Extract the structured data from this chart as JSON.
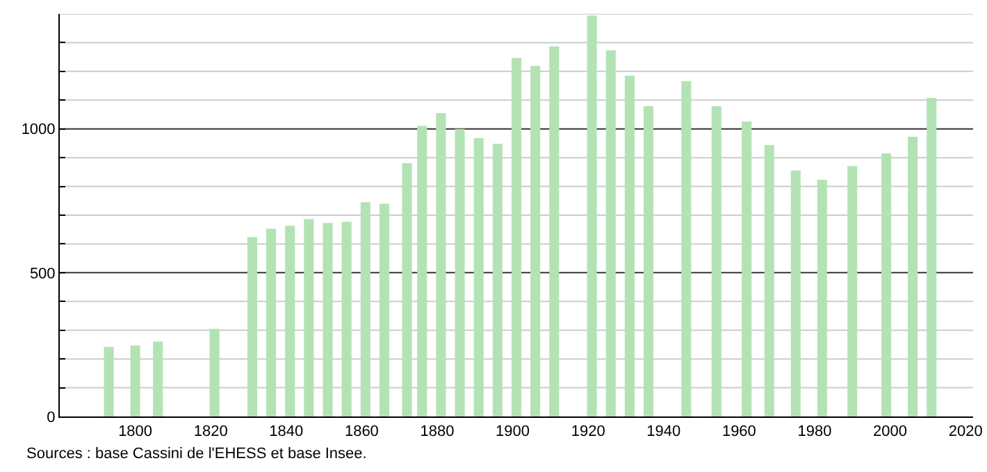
{
  "chart_data": {
    "type": "bar",
    "x": [
      1793,
      1800,
      1806,
      1821,
      1831,
      1836,
      1841,
      1846,
      1851,
      1856,
      1861,
      1866,
      1872,
      1876,
      1881,
      1886,
      1891,
      1896,
      1901,
      1906,
      1911,
      1921,
      1926,
      1931,
      1936,
      1946,
      1954,
      1962,
      1968,
      1975,
      1982,
      1990,
      1999,
      2006,
      2011
    ],
    "values": [
      242,
      247,
      261,
      305,
      624,
      653,
      663,
      687,
      673,
      677,
      745,
      740,
      881,
      1011,
      1055,
      1000,
      968,
      948,
      1247,
      1219,
      1287,
      1394,
      1273,
      1185,
      1079,
      1166,
      1079,
      1026,
      944,
      856,
      823,
      871,
      915,
      973,
      1108
    ],
    "color": "#b3e3b5",
    "xlim": [
      1780,
      2022
    ],
    "xticks": [
      1800,
      1820,
      1840,
      1860,
      1880,
      1900,
      1920,
      1940,
      1960,
      1980,
      2000,
      2020
    ],
    "ylim": [
      0,
      1400
    ],
    "yticks": [
      0,
      {
        "value": 100,
        "label": null
      },
      {
        "value": 200,
        "label": null
      },
      {
        "value": 300,
        "label": null
      },
      {
        "value": 400,
        "label": null
      },
      500,
      {
        "value": 600,
        "label": null
      },
      {
        "value": 700,
        "label": null
      },
      {
        "value": 800,
        "label": null
      },
      {
        "value": 900,
        "label": null
      },
      1000,
      {
        "value": 1100,
        "label": null
      },
      {
        "value": 1200,
        "label": null
      },
      {
        "value": 1300,
        "label": null
      },
      {
        "value": 1400,
        "label": null
      }
    ],
    "grid": "y",
    "annotations": [
      "Sources : base Cassini de l'EHESS et base Insee."
    ]
  }
}
